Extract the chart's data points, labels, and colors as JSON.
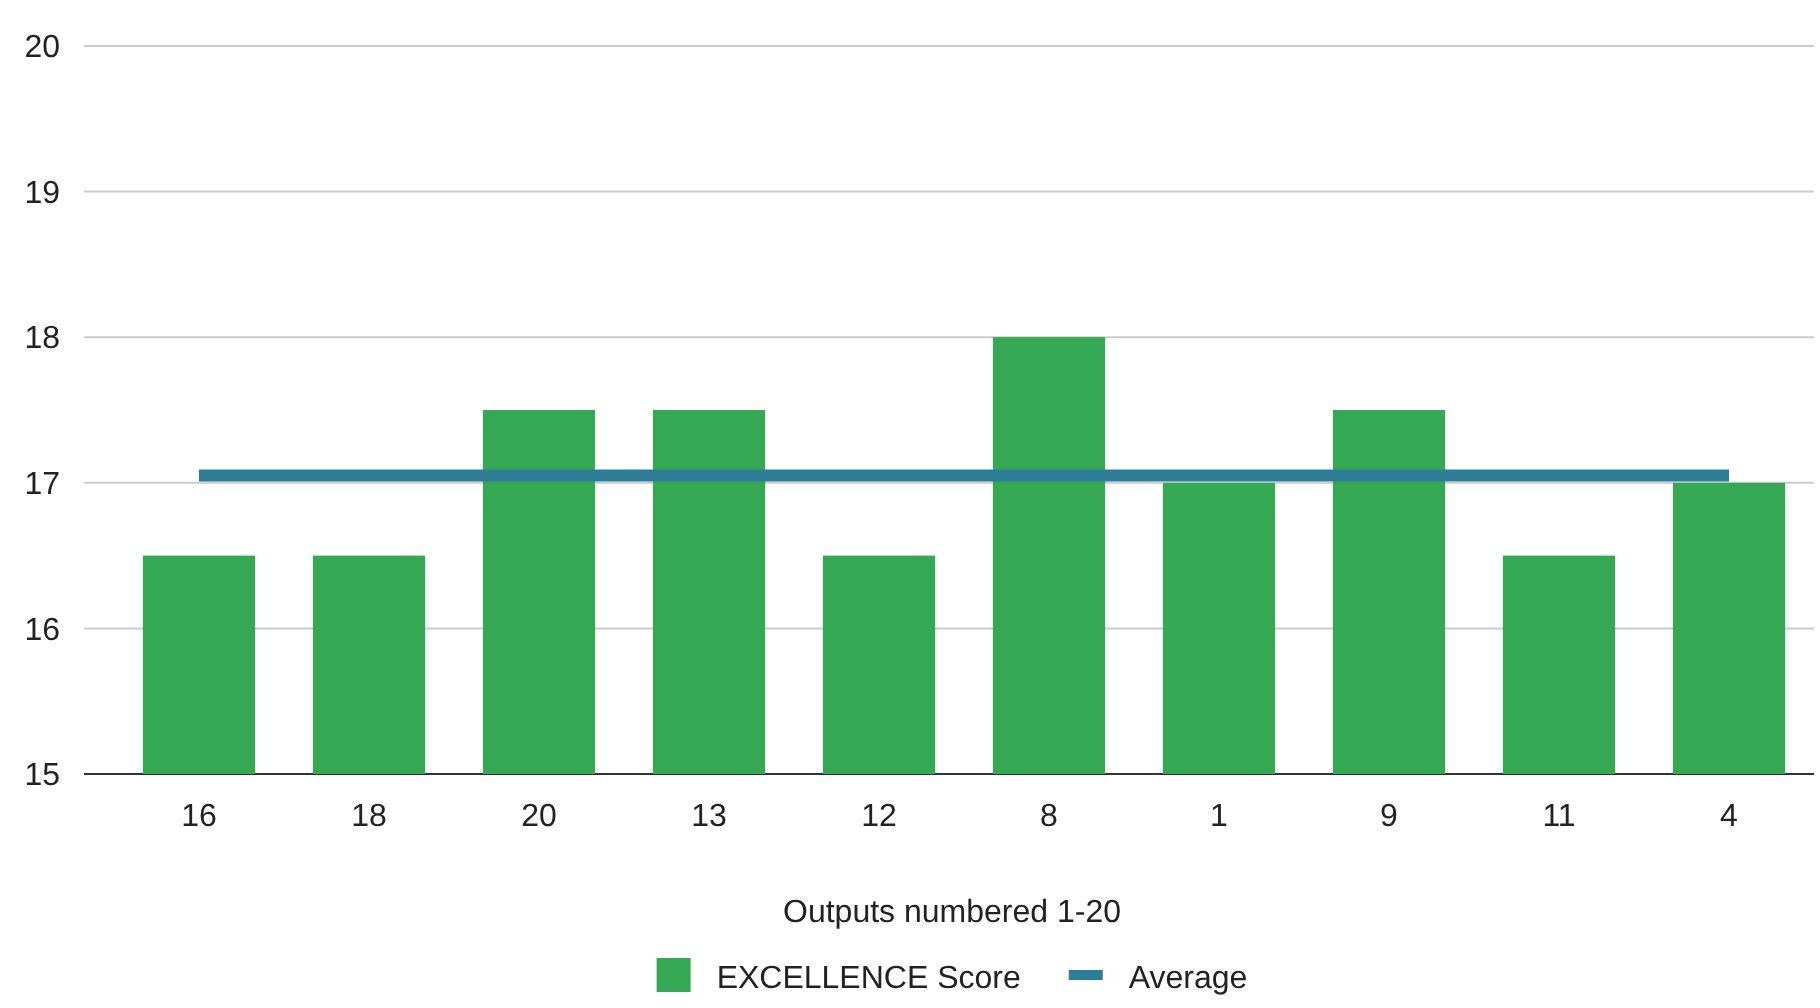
{
  "chart_data": {
    "type": "bar",
    "xlabel": "Outputs numbered 1-20",
    "categories": [
      "16",
      "18",
      "20",
      "13",
      "12",
      "8",
      "1",
      "9",
      "11",
      "4"
    ],
    "series": [
      {
        "name": "EXCELLENCE Score",
        "color": "#34a853",
        "values": [
          16.5,
          16.5,
          17.5,
          17.5,
          16.5,
          18,
          17,
          17.5,
          16.5,
          17
        ]
      },
      {
        "name": "Average",
        "type": "line",
        "color": "#2e7d96",
        "values": [
          17.05,
          17.05,
          17.05,
          17.05,
          17.05,
          17.05,
          17.05,
          17.05,
          17.05,
          17.05
        ]
      }
    ],
    "ylim": [
      15,
      20
    ],
    "yticks": [
      15,
      16,
      17,
      18,
      19,
      20
    ],
    "grid": "y",
    "legend": "bottom"
  }
}
